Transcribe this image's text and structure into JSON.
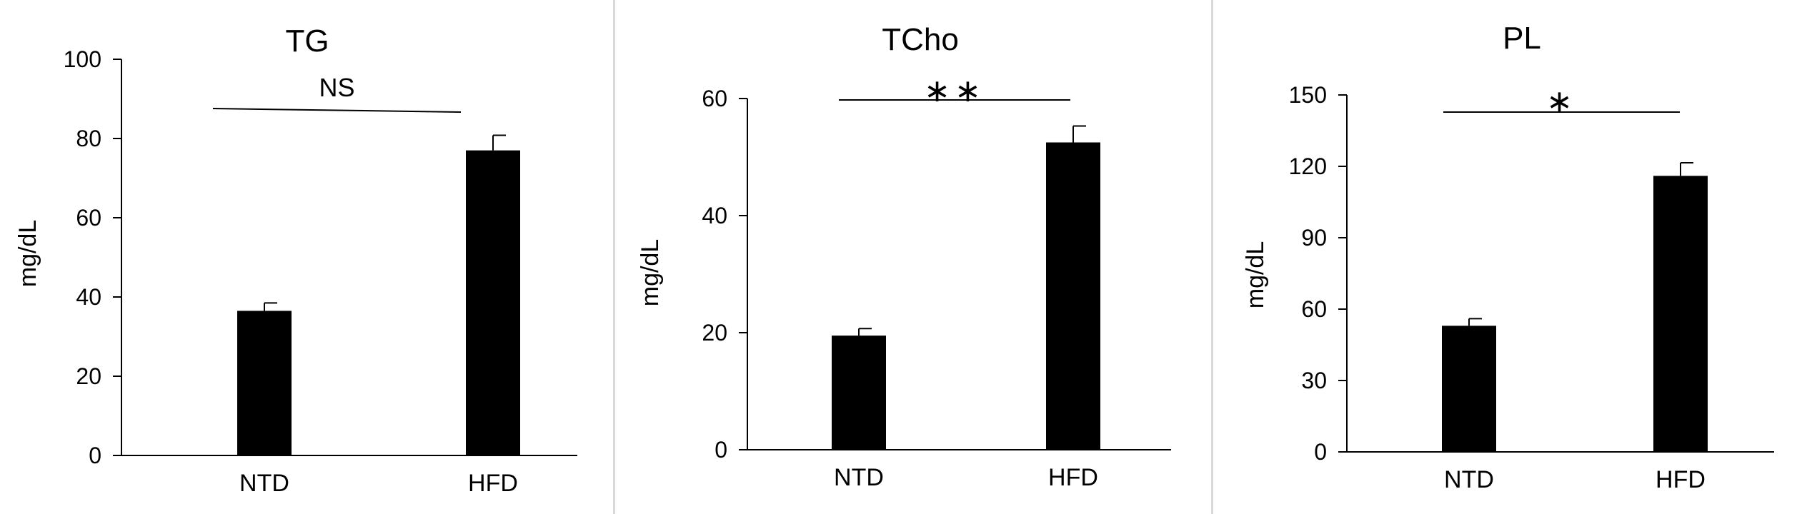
{
  "chart_data": [
    {
      "type": "bar",
      "title": "TG",
      "ylabel": "mg/dL",
      "xlabel": "",
      "categories": [
        "NTD",
        "HFD"
      ],
      "values": [
        36.5,
        77
      ],
      "error": [
        2,
        3.8
      ],
      "ylim": [
        0,
        100
      ],
      "yticks": [
        0,
        20,
        40,
        60,
        80,
        100
      ],
      "significance": "NS",
      "grid": false,
      "bar_color": "#000000"
    },
    {
      "type": "bar",
      "title": "TCho",
      "ylabel": "mg/dL",
      "xlabel": "",
      "categories": [
        "NTD",
        "HFD"
      ],
      "values": [
        19.5,
        52.5
      ],
      "error": [
        1.2,
        2.8
      ],
      "ylim": [
        0,
        60
      ],
      "yticks": [
        0,
        20,
        40,
        60
      ],
      "significance": "∗∗",
      "grid": false,
      "bar_color": "#000000"
    },
    {
      "type": "bar",
      "title": "PL",
      "ylabel": "mg/dL",
      "xlabel": "",
      "categories": [
        "NTD",
        "HFD"
      ],
      "values": [
        53,
        116
      ],
      "error": [
        3,
        5.5
      ],
      "ylim": [
        0,
        150
      ],
      "yticks": [
        0,
        30,
        60,
        90,
        120,
        150
      ],
      "significance": "∗",
      "grid": false,
      "bar_color": "#000000"
    }
  ]
}
